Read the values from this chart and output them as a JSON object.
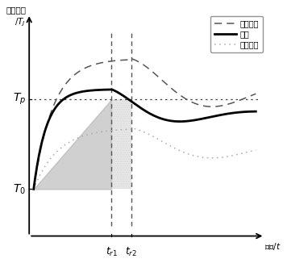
{
  "T0": 0.18,
  "Tp": 0.62,
  "tr1": 0.35,
  "tr2": 0.44,
  "xlim_min": -0.04,
  "xlim_max": 1.05,
  "ylim_min": -0.05,
  "ylim_max": 1.05,
  "normal_color": "#000000",
  "transient_color": "#555555",
  "aging_color": "#aaaaaa",
  "shade_dark": "#aaaaaa",
  "shade_light": "#cccccc",
  "Tp_label": "$T_p$",
  "T0_label": "$T_0$",
  "tr1_label": "$t_{r1}$",
  "tr2_label": "$t_{r2}$",
  "ylabel_line1": "模块壳温",
  "ylabel_line2": "/$T_J$",
  "xlabel": "时间/$t$",
  "legend_labels": [
    "瞬态过温",
    "正常",
    "老化失效"
  ]
}
